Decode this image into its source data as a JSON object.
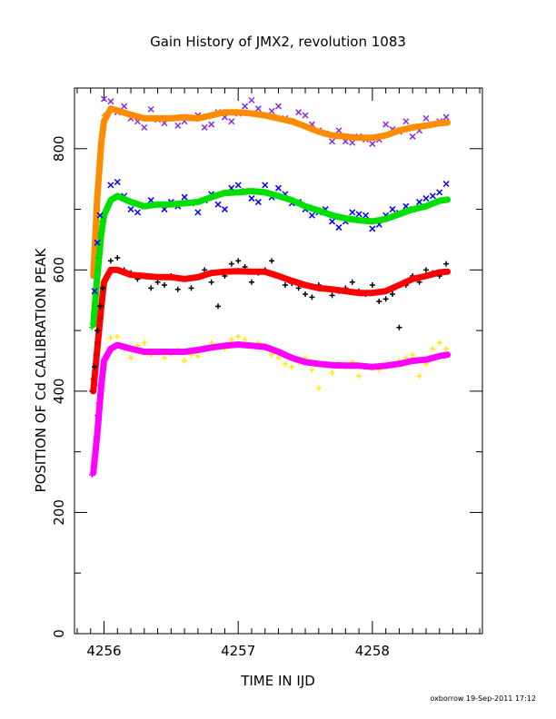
{
  "chart_data": {
    "type": "scatter",
    "title": "Gain History of JMX2, revolution 1083",
    "xlabel": "TIME IN IJD",
    "ylabel": "POSITION OF Cd CALIBRATION PEAK",
    "footer": "oxborrow 19-Sep-2011 17:12",
    "xlim": [
      4255.78,
      4258.82
    ],
    "ylim": [
      0,
      900
    ],
    "xticks": [
      4256,
      4257,
      4258
    ],
    "xtick_labels": [
      "4256",
      "4257",
      "4258"
    ],
    "yticks": [
      0,
      200,
      400,
      600,
      800
    ],
    "ytick_labels": [
      "0",
      "200",
      "400",
      "600",
      "800"
    ],
    "grid": false,
    "series": [
      {
        "role": "scatter",
        "marker": "x",
        "color": "#8a2be2",
        "x": [
          4256.0,
          4256.05,
          4256.1,
          4256.15,
          4256.2,
          4256.25,
          4256.3,
          4256.35,
          4256.4,
          4256.45,
          4256.5,
          4256.55,
          4256.6,
          4256.65,
          4256.7,
          4256.75,
          4256.8,
          4256.85,
          4256.9,
          4256.95,
          4257.0,
          4257.05,
          4257.1,
          4257.15,
          4257.2,
          4257.25,
          4257.3,
          4257.35,
          4257.4,
          4257.45,
          4257.5,
          4257.55,
          4257.6,
          4257.65,
          4257.7,
          4257.75,
          4257.8,
          4257.85,
          4257.9,
          4257.95,
          4258.0,
          4258.05,
          4258.1,
          4258.15,
          4258.2,
          4258.25,
          4258.3,
          4258.35,
          4258.4,
          4258.45,
          4258.5,
          4258.55
        ],
        "y": [
          882,
          878,
          860,
          870,
          850,
          845,
          835,
          865,
          848,
          842,
          850,
          838,
          845,
          850,
          855,
          835,
          840,
          860,
          852,
          845,
          858,
          870,
          880,
          866,
          855,
          862,
          870,
          850,
          845,
          860,
          855,
          840,
          830,
          825,
          812,
          830,
          812,
          810,
          820,
          815,
          808,
          815,
          840,
          832,
          828,
          845,
          820,
          830,
          850,
          840,
          845,
          852
        ]
      },
      {
        "role": "fit",
        "color": "#ff8c00",
        "x": [
          4255.92,
          4255.95,
          4255.98,
          4256.0,
          4256.05,
          4256.1,
          4256.2,
          4256.3,
          4256.4,
          4256.5,
          4256.6,
          4256.7,
          4256.8,
          4256.9,
          4257.0,
          4257.1,
          4257.2,
          4257.3,
          4257.4,
          4257.5,
          4257.6,
          4257.7,
          4257.8,
          4257.9,
          4258.0,
          4258.1,
          4258.2,
          4258.3,
          4258.4,
          4258.5,
          4258.56
        ],
        "y": [
          590,
          720,
          810,
          845,
          866,
          863,
          856,
          850,
          850,
          850,
          852,
          850,
          855,
          860,
          860,
          858,
          855,
          850,
          845,
          837,
          828,
          822,
          820,
          818,
          818,
          822,
          830,
          835,
          838,
          842,
          843
        ]
      },
      {
        "role": "scatter",
        "marker": "x",
        "color": "#0000ff",
        "x": [
          4256.05,
          4256.1,
          4256.15,
          4256.2,
          4256.25,
          4256.3,
          4256.35,
          4256.4,
          4256.45,
          4256.5,
          4256.55,
          4256.6,
          4256.65,
          4256.7,
          4256.75,
          4256.8,
          4256.85,
          4256.9,
          4256.95,
          4257.0,
          4257.05,
          4257.1,
          4257.15,
          4257.2,
          4257.25,
          4257.3,
          4257.35,
          4257.4,
          4257.45,
          4257.5,
          4257.55,
          4257.6,
          4257.65,
          4257.7,
          4257.75,
          4257.8,
          4257.85,
          4257.9,
          4257.95,
          4258.0,
          4258.05,
          4258.1,
          4258.15,
          4258.2,
          4258.25,
          4258.3,
          4258.35,
          4258.4,
          4258.45,
          4258.5,
          4258.55
        ],
        "y": [
          740,
          745,
          722,
          700,
          695,
          705,
          715,
          708,
          700,
          712,
          705,
          720,
          710,
          695,
          715,
          725,
          708,
          700,
          735,
          740,
          730,
          718,
          712,
          740,
          720,
          735,
          725,
          710,
          712,
          700,
          690,
          695,
          700,
          680,
          670,
          680,
          695,
          692,
          690,
          668,
          675,
          690,
          700,
          694,
          705,
          700,
          712,
          718,
          722,
          728,
          742
        ]
      },
      {
        "role": "fit",
        "color": "#00e000",
        "x": [
          4255.92,
          4255.95,
          4255.98,
          4256.0,
          4256.05,
          4256.1,
          4256.2,
          4256.3,
          4256.4,
          4256.5,
          4256.6,
          4256.7,
          4256.8,
          4256.9,
          4257.0,
          4257.1,
          4257.2,
          4257.3,
          4257.4,
          4257.5,
          4257.6,
          4257.7,
          4257.8,
          4257.9,
          4258.0,
          4258.1,
          4258.2,
          4258.3,
          4258.4,
          4258.5,
          4258.56
        ],
        "y": [
          510,
          590,
          660,
          690,
          715,
          722,
          712,
          705,
          708,
          708,
          710,
          712,
          720,
          727,
          728,
          730,
          728,
          722,
          715,
          705,
          698,
          690,
          685,
          682,
          680,
          684,
          692,
          700,
          705,
          714,
          716
        ]
      },
      {
        "role": "scatter",
        "marker": "+",
        "color": "#000000",
        "x": [
          4256.05,
          4256.1,
          4256.15,
          4256.2,
          4256.25,
          4256.3,
          4256.35,
          4256.4,
          4256.45,
          4256.5,
          4256.55,
          4256.6,
          4256.65,
          4256.7,
          4256.75,
          4256.8,
          4256.85,
          4256.9,
          4256.95,
          4257.0,
          4257.05,
          4257.1,
          4257.15,
          4257.2,
          4257.25,
          4257.3,
          4257.35,
          4257.4,
          4257.45,
          4257.5,
          4257.55,
          4257.6,
          4257.65,
          4257.7,
          4257.75,
          4257.8,
          4257.85,
          4257.9,
          4257.95,
          4258.0,
          4258.05,
          4258.1,
          4258.15,
          4258.2,
          4258.25,
          4258.3,
          4258.35,
          4258.4,
          4258.45,
          4258.5,
          4258.55
        ],
        "y": [
          615,
          620,
          600,
          595,
          585,
          590,
          570,
          580,
          575,
          590,
          568,
          585,
          570,
          588,
          600,
          580,
          540,
          590,
          610,
          615,
          605,
          580,
          595,
          600,
          615,
          590,
          575,
          578,
          570,
          560,
          555,
          575,
          570,
          558,
          565,
          570,
          580,
          565,
          560,
          575,
          548,
          552,
          560,
          505,
          575,
          590,
          580,
          600,
          595,
          590,
          610
        ]
      },
      {
        "role": "fit",
        "color": "#ff0000",
        "x": [
          4255.92,
          4255.95,
          4255.98,
          4256.0,
          4256.05,
          4256.1,
          4256.2,
          4256.3,
          4256.4,
          4256.5,
          4256.6,
          4256.7,
          4256.8,
          4256.9,
          4257.0,
          4257.1,
          4257.2,
          4257.3,
          4257.4,
          4257.5,
          4257.6,
          4257.7,
          4257.8,
          4257.9,
          4258.0,
          4258.1,
          4258.2,
          4258.3,
          4258.4,
          4258.5,
          4258.56
        ],
        "y": [
          400,
          470,
          540,
          580,
          600,
          600,
          592,
          590,
          588,
          588,
          585,
          588,
          595,
          597,
          598,
          597,
          597,
          590,
          582,
          575,
          570,
          568,
          565,
          562,
          562,
          565,
          575,
          585,
          590,
          596,
          597
        ]
      },
      {
        "role": "scatter",
        "marker": "+",
        "color": "#ffea00",
        "x": [
          4256.05,
          4256.1,
          4256.15,
          4256.2,
          4256.25,
          4256.3,
          4256.35,
          4256.4,
          4256.45,
          4256.5,
          4256.55,
          4256.6,
          4256.65,
          4256.7,
          4256.75,
          4256.8,
          4256.85,
          4256.9,
          4256.95,
          4257.0,
          4257.05,
          4257.1,
          4257.15,
          4257.2,
          4257.25,
          4257.3,
          4257.35,
          4257.4,
          4257.45,
          4257.5,
          4257.55,
          4257.6,
          4257.65,
          4257.7,
          4257.75,
          4257.8,
          4257.85,
          4257.9,
          4257.95,
          4258.0,
          4258.05,
          4258.1,
          4258.15,
          4258.2,
          4258.25,
          4258.3,
          4258.35,
          4258.4,
          4258.45,
          4258.5,
          4258.55
        ],
        "y": [
          488,
          490,
          470,
          455,
          475,
          480,
          460,
          465,
          455,
          462,
          468,
          450,
          460,
          458,
          472,
          480,
          475,
          470,
          485,
          490,
          485,
          475,
          480,
          470,
          460,
          455,
          445,
          440,
          448,
          455,
          435,
          405,
          445,
          430,
          445,
          440,
          448,
          425,
          440,
          438,
          435,
          440,
          445,
          450,
          455,
          460,
          425,
          445,
          470,
          480,
          470
        ]
      },
      {
        "role": "fit",
        "color": "#ff00ff",
        "x": [
          4255.92,
          4255.95,
          4255.98,
          4256.0,
          4256.05,
          4256.1,
          4256.2,
          4256.3,
          4256.4,
          4256.5,
          4256.6,
          4256.7,
          4256.8,
          4256.9,
          4257.0,
          4257.1,
          4257.2,
          4257.3,
          4257.4,
          4257.5,
          4257.6,
          4257.7,
          4257.8,
          4257.9,
          4258.0,
          4258.1,
          4258.2,
          4258.3,
          4258.4,
          4258.5,
          4258.56
        ],
        "y": [
          265,
          330,
          410,
          450,
          470,
          476,
          470,
          465,
          465,
          465,
          465,
          468,
          472,
          475,
          477,
          475,
          473,
          465,
          455,
          448,
          445,
          443,
          442,
          442,
          440,
          442,
          445,
          450,
          452,
          458,
          460
        ]
      },
      {
        "role": "scatter",
        "marker": "+",
        "color": "#ff8c00",
        "x": [
          4255.94,
          4255.95,
          4255.96,
          4255.97,
          4255.98,
          4255.99,
          4256.0
        ],
        "y": [
          650,
          700,
          740,
          770,
          800,
          830,
          855
        ]
      },
      {
        "role": "scatter",
        "marker": "+",
        "color": "#00e000",
        "x": [
          4255.91,
          4255.92,
          4255.93,
          4255.94,
          4255.95,
          4255.96,
          4255.97,
          4255.98
        ],
        "y": [
          505,
          530,
          560,
          590,
          620,
          640,
          660,
          680
        ]
      },
      {
        "role": "scatter",
        "marker": "+",
        "color": "#cc0000",
        "x": [
          4255.91,
          4255.92,
          4255.93,
          4255.94,
          4255.95,
          4255.96,
          4255.97,
          4255.98
        ],
        "y": [
          400,
          420,
          440,
          460,
          480,
          500,
          520,
          540
        ]
      },
      {
        "role": "scatter",
        "marker": "+",
        "color": "#ff00ff",
        "x": [
          4255.91,
          4255.92,
          4255.93,
          4255.94,
          4255.95,
          4255.96,
          4255.97
        ],
        "y": [
          262,
          275,
          290,
          305,
          360,
          380,
          410
        ]
      },
      {
        "role": "scatter",
        "marker": "+",
        "color": "#000000",
        "x": [
          4255.93,
          4255.95,
          4255.97,
          4255.99
        ],
        "y": [
          440,
          500,
          540,
          570
        ]
      },
      {
        "role": "scatter",
        "marker": "x",
        "color": "#0000ff",
        "x": [
          4255.93,
          4255.95,
          4255.97
        ],
        "y": [
          565,
          645,
          690
        ]
      }
    ]
  }
}
